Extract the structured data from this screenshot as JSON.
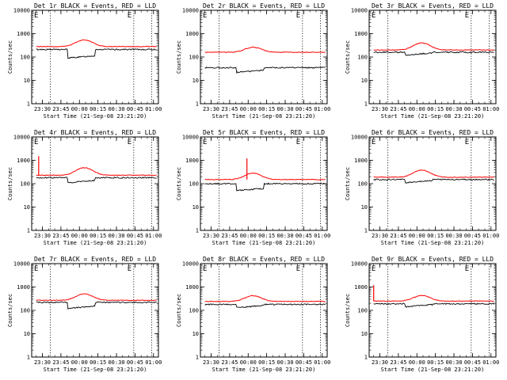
{
  "figure": {
    "x_tick_labels": [
      "23:30",
      "23:45",
      "00:00",
      "00:15",
      "00:30",
      "00:45",
      "01:00"
    ],
    "y_tick_labels": [
      "1",
      "10",
      "100",
      "1000",
      "10000"
    ],
    "xlabel": "Start Time (21-Sep-08 23:21:20)",
    "ylabel": "Counts/sec",
    "flag_marker": "E",
    "colors": {
      "events": "#000000",
      "lld": "#ff0000",
      "axes": "#000000",
      "background": "#ffffff"
    }
  },
  "chart_data": [
    {
      "type": "line",
      "title": "Det 1r BLACK = Events, RED = LLD",
      "ylim": [
        1,
        10000
      ],
      "yscale": "log",
      "xlim": [
        "23:21:20",
        "01:04:00"
      ],
      "events_level": 210,
      "lld_level": 280,
      "events_gap": 90,
      "lld_peak": 540,
      "lld_spike": null,
      "events_drop": false,
      "x_tick_labels": [
        "23:30",
        "23:45",
        "00:00",
        "00:15",
        "00:30",
        "00:45",
        "01:00"
      ],
      "xlabel": "Start Time (21-Sep-08 23:21:20)",
      "ylabel": "Counts/sec"
    },
    {
      "type": "line",
      "title": "Det 2r BLACK = Events, RED = LLD",
      "ylim": [
        1,
        10000
      ],
      "yscale": "log",
      "xlim": [
        "23:21:20",
        "01:04:00"
      ],
      "events_level": 35,
      "lld_level": 160,
      "events_gap": 22,
      "lld_peak": 260,
      "lld_spike": null,
      "events_drop": false,
      "x_tick_labels": [
        "23:30",
        "23:45",
        "00:00",
        "00:15",
        "00:30",
        "00:45",
        "01:00"
      ],
      "xlabel": "Start Time (21-Sep-08 23:21:20)",
      "ylabel": "Counts/sec"
    },
    {
      "type": "line",
      "title": "Det 3r BLACK = Events, RED = LLD",
      "ylim": [
        1,
        10000
      ],
      "yscale": "log",
      "xlim": [
        "23:21:20",
        "01:04:00"
      ],
      "events_level": 160,
      "lld_level": 200,
      "events_gap": 120,
      "lld_peak": 400,
      "lld_spike": null,
      "events_drop": false,
      "x_tick_labels": [
        "23:30",
        "23:45",
        "00:00",
        "00:15",
        "00:30",
        "00:45",
        "01:00"
      ],
      "xlabel": "Start Time (21-Sep-08 23:21:20)",
      "ylabel": "Counts/sec"
    },
    {
      "type": "line",
      "title": "Det 4r BLACK = Events, RED = LLD",
      "ylim": [
        1,
        10000
      ],
      "yscale": "log",
      "xlim": [
        "23:21:20",
        "01:04:00"
      ],
      "events_level": 180,
      "lld_level": 230,
      "events_gap": 110,
      "lld_peak": 480,
      "lld_spike": {
        "x": "23:27:00",
        "value": 1500
      },
      "events_drop": false,
      "x_tick_labels": [
        "23:30",
        "23:45",
        "00:00",
        "00:15",
        "00:30",
        "00:45",
        "01:00"
      ],
      "xlabel": "Start Time (21-Sep-08 23:21:20)",
      "ylabel": "Counts/sec"
    },
    {
      "type": "line",
      "title": "Det 5r BLACK = Events, RED = LLD",
      "ylim": [
        1,
        10000
      ],
      "yscale": "log",
      "xlim": [
        "23:21:20",
        "01:04:00"
      ],
      "events_level": 100,
      "lld_level": 150,
      "events_gap": 50,
      "lld_peak": 280,
      "lld_spike": {
        "x": "23:59:00",
        "value": 1200
      },
      "events_drop": false,
      "x_tick_labels": [
        "23:30",
        "23:45",
        "00:00",
        "00:15",
        "00:30",
        "00:45",
        "01:00"
      ],
      "xlabel": "Start Time (21-Sep-08 23:21:20)",
      "ylabel": "Counts/sec"
    },
    {
      "type": "line",
      "title": "Det 6r BLACK = Events, RED = LLD",
      "ylim": [
        1,
        10000
      ],
      "yscale": "log",
      "xlim": [
        "23:21:20",
        "01:04:00"
      ],
      "events_level": 150,
      "lld_level": 190,
      "events_gap": 110,
      "lld_peak": 380,
      "lld_spike": null,
      "events_drop": false,
      "x_tick_labels": [
        "23:30",
        "23:45",
        "00:00",
        "00:15",
        "00:30",
        "00:45",
        "01:00"
      ],
      "xlabel": "Start Time (21-Sep-08 23:21:20)",
      "ylabel": "Counts/sec"
    },
    {
      "type": "line",
      "title": "Det 7r BLACK = Events, RED = LLD",
      "ylim": [
        1,
        10000
      ],
      "yscale": "log",
      "xlim": [
        "23:21:20",
        "01:04:00"
      ],
      "events_level": 220,
      "lld_level": 270,
      "events_gap": 120,
      "lld_peak": 500,
      "lld_spike": null,
      "events_drop": false,
      "x_tick_labels": [
        "23:30",
        "23:45",
        "00:00",
        "00:15",
        "00:30",
        "00:45",
        "01:00"
      ],
      "xlabel": "Start Time (21-Sep-08 23:21:20)",
      "ylabel": "Counts/sec"
    },
    {
      "type": "line",
      "title": "Det 8r BLACK = Events, RED = LLD",
      "ylim": [
        1,
        10000
      ],
      "yscale": "log",
      "xlim": [
        "23:21:20",
        "01:04:00"
      ],
      "events_level": 180,
      "lld_level": 240,
      "events_gap": 130,
      "lld_peak": 420,
      "lld_spike": null,
      "events_drop": false,
      "x_tick_labels": [
        "23:30",
        "23:45",
        "00:00",
        "00:15",
        "00:30",
        "00:45",
        "01:00"
      ],
      "xlabel": "Start Time (21-Sep-08 23:21:20)",
      "ylabel": "Counts/sec"
    },
    {
      "type": "line",
      "title": "Det 9r BLACK = Events, RED = LLD",
      "ylim": [
        1,
        10000
      ],
      "yscale": "log",
      "xlim": [
        "23:21:20",
        "01:04:00"
      ],
      "events_level": 190,
      "lld_level": 250,
      "events_gap": 140,
      "lld_peak": 430,
      "lld_spike": {
        "x": "23:25:00",
        "value": 1200
      },
      "events_drop": false,
      "x_tick_labels": [
        "23:30",
        "23:45",
        "00:00",
        "00:15",
        "00:30",
        "00:45",
        "01:00"
      ],
      "xlabel": "Start Time (21-Sep-08 23:21:20)",
      "ylabel": "Counts/sec"
    }
  ]
}
